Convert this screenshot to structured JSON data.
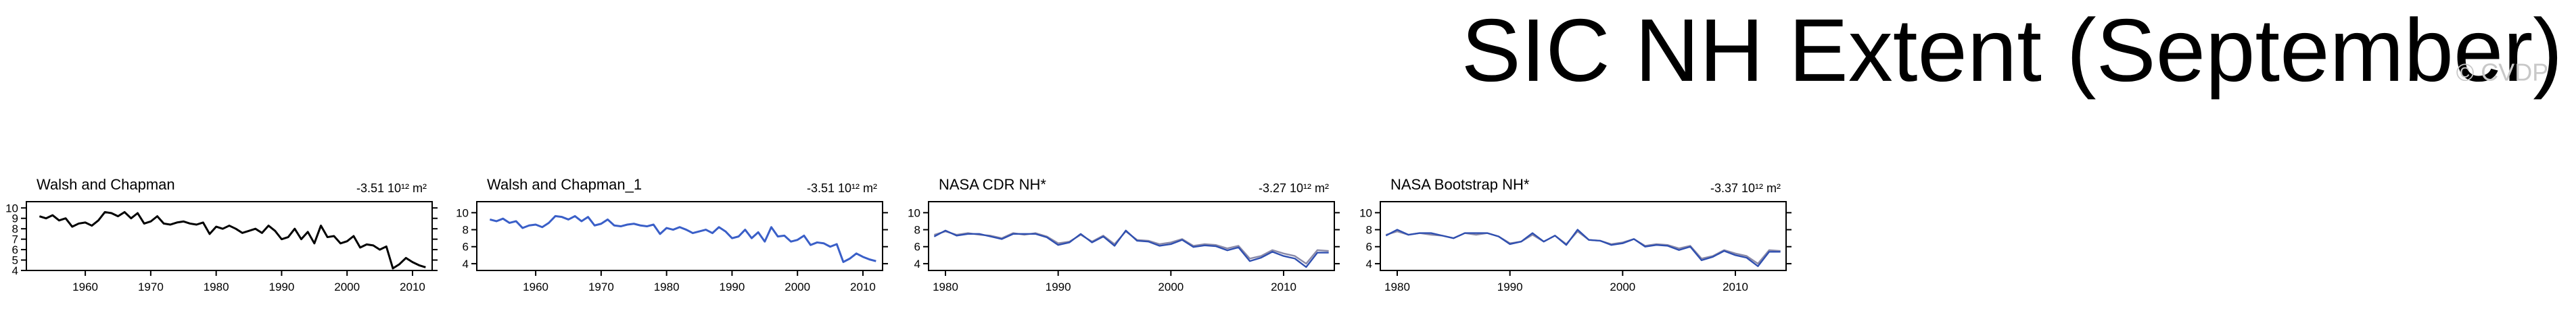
{
  "title": "SIC NH Extent (September)",
  "watermark": "© CVDP",
  "chart_data": [
    {
      "type": "line",
      "title": "Walsh and Chapman",
      "annotation": "-3.51 10¹² m²",
      "x": [
        1953,
        1954,
        1955,
        1956,
        1957,
        1958,
        1959,
        1960,
        1961,
        1962,
        1963,
        1964,
        1965,
        1966,
        1967,
        1968,
        1969,
        1970,
        1971,
        1972,
        1973,
        1974,
        1975,
        1976,
        1977,
        1978,
        1979,
        1980,
        1981,
        1982,
        1983,
        1984,
        1985,
        1986,
        1987,
        1988,
        1989,
        1990,
        1991,
        1992,
        1993,
        1994,
        1995,
        1996,
        1997,
        1998,
        1999,
        2000,
        2001,
        2002,
        2003,
        2004,
        2005,
        2006,
        2007,
        2008,
        2009,
        2010,
        2011,
        2012
      ],
      "series": [
        {
          "color": "#000000",
          "values": [
            9.2,
            9.0,
            9.3,
            8.8,
            9.0,
            8.2,
            8.5,
            8.6,
            8.3,
            8.8,
            9.6,
            9.5,
            9.2,
            9.6,
            9.0,
            9.5,
            8.5,
            8.7,
            9.2,
            8.5,
            8.4,
            8.6,
            8.7,
            8.5,
            8.4,
            8.6,
            7.5,
            8.2,
            8.0,
            8.3,
            8.0,
            7.6,
            7.8,
            8.0,
            7.6,
            8.3,
            7.8,
            7.0,
            7.2,
            8.0,
            7.0,
            7.7,
            6.6,
            8.3,
            7.2,
            7.3,
            6.6,
            6.8,
            7.3,
            6.2,
            6.5,
            6.4,
            6.0,
            6.3,
            4.2,
            4.6,
            5.2,
            4.8,
            4.5,
            4.3
          ]
        }
      ],
      "xlim": [
        1951,
        2013
      ],
      "xticks": [
        1960,
        1970,
        1980,
        1990,
        2000,
        2010
      ],
      "ylim": [
        4,
        10.6
      ],
      "yticks": [
        4,
        5,
        6,
        7,
        8,
        9,
        10
      ]
    },
    {
      "type": "line",
      "title": "Walsh and Chapman_1",
      "annotation": "-3.51 10¹² m²",
      "x": [
        1953,
        1954,
        1955,
        1956,
        1957,
        1958,
        1959,
        1960,
        1961,
        1962,
        1963,
        1964,
        1965,
        1966,
        1967,
        1968,
        1969,
        1970,
        1971,
        1972,
        1973,
        1974,
        1975,
        1976,
        1977,
        1978,
        1979,
        1980,
        1981,
        1982,
        1983,
        1984,
        1985,
        1986,
        1987,
        1988,
        1989,
        1990,
        1991,
        1992,
        1993,
        1994,
        1995,
        1996,
        1997,
        1998,
        1999,
        2000,
        2001,
        2002,
        2003,
        2004,
        2005,
        2006,
        2007,
        2008,
        2009,
        2010,
        2011,
        2012
      ],
      "series": [
        {
          "color": "#3a5fc8",
          "values": [
            9.2,
            9.0,
            9.3,
            8.8,
            9.0,
            8.2,
            8.5,
            8.6,
            8.3,
            8.8,
            9.6,
            9.5,
            9.2,
            9.6,
            9.0,
            9.5,
            8.5,
            8.7,
            9.2,
            8.5,
            8.4,
            8.6,
            8.7,
            8.5,
            8.4,
            8.6,
            7.5,
            8.2,
            8.0,
            8.3,
            8.0,
            7.6,
            7.8,
            8.0,
            7.6,
            8.3,
            7.8,
            7.0,
            7.2,
            8.0,
            7.0,
            7.7,
            6.6,
            8.3,
            7.2,
            7.3,
            6.6,
            6.8,
            7.3,
            6.2,
            6.5,
            6.4,
            6.0,
            6.3,
            4.2,
            4.6,
            5.2,
            4.8,
            4.5,
            4.3
          ]
        }
      ],
      "xlim": [
        1951,
        2013
      ],
      "xticks": [
        1960,
        1970,
        1980,
        1990,
        2000,
        2010
      ],
      "ylim": [
        3.2,
        11.3
      ],
      "yticks": [
        4,
        6,
        8,
        10
      ]
    },
    {
      "type": "line",
      "title": "NASA CDR NH*",
      "annotation": "-3.27 10¹² m²",
      "x": [
        1979,
        1980,
        1981,
        1982,
        1983,
        1984,
        1985,
        1986,
        1987,
        1988,
        1989,
        1990,
        1991,
        1992,
        1993,
        1994,
        1995,
        1996,
        1997,
        1998,
        1999,
        2000,
        2001,
        2002,
        2003,
        2004,
        2005,
        2006,
        2007,
        2008,
        2009,
        2010,
        2011,
        2012,
        2013,
        2014
      ],
      "series": [
        {
          "color": "#8a8aa8",
          "values": [
            7.4,
            7.8,
            7.4,
            7.6,
            7.4,
            7.3,
            7.0,
            7.6,
            7.4,
            7.6,
            7.2,
            6.4,
            6.6,
            7.4,
            6.6,
            7.3,
            6.3,
            7.8,
            6.8,
            6.7,
            6.3,
            6.5,
            6.9,
            6.1,
            6.3,
            6.2,
            5.8,
            6.1,
            4.6,
            4.9,
            5.6,
            5.2,
            4.9,
            4.0,
            5.6,
            5.5
          ]
        },
        {
          "color": "#2f4fb0",
          "values": [
            7.2,
            7.9,
            7.3,
            7.5,
            7.5,
            7.2,
            6.9,
            7.5,
            7.5,
            7.5,
            7.1,
            6.2,
            6.5,
            7.5,
            6.5,
            7.2,
            6.1,
            7.9,
            6.7,
            6.6,
            6.1,
            6.3,
            6.8,
            5.96,
            6.15,
            6.05,
            5.57,
            5.92,
            4.3,
            4.7,
            5.4,
            4.9,
            4.6,
            3.6,
            5.3,
            5.3
          ]
        }
      ],
      "xlim": [
        1978.5,
        2014.5
      ],
      "xticks": [
        1980,
        1990,
        2000,
        2010
      ],
      "ylim": [
        3.2,
        11.3
      ],
      "yticks": [
        4,
        6,
        8,
        10
      ]
    },
    {
      "type": "line",
      "title": "NASA Bootstrap NH*",
      "annotation": "-3.37 10¹² m²",
      "x": [
        1979,
        1980,
        1981,
        1982,
        1983,
        1984,
        1985,
        1986,
        1987,
        1988,
        1989,
        1990,
        1991,
        1992,
        1993,
        1994,
        1995,
        1996,
        1997,
        1998,
        1999,
        2000,
        2001,
        2002,
        2003,
        2004,
        2005,
        2006,
        2007,
        2008,
        2009,
        2010,
        2011,
        2012,
        2013,
        2014
      ],
      "series": [
        {
          "color": "#8a8aa8",
          "values": [
            7.4,
            7.8,
            7.4,
            7.6,
            7.4,
            7.3,
            7.0,
            7.6,
            7.4,
            7.6,
            7.2,
            6.4,
            6.6,
            7.4,
            6.6,
            7.3,
            6.3,
            7.8,
            6.8,
            6.7,
            6.3,
            6.5,
            6.9,
            6.1,
            6.3,
            6.2,
            5.8,
            6.1,
            4.6,
            4.9,
            5.6,
            5.2,
            4.9,
            4.0,
            5.6,
            5.5
          ]
        },
        {
          "color": "#2f4fb0",
          "values": [
            7.3,
            8.0,
            7.4,
            7.6,
            7.6,
            7.3,
            7.0,
            7.6,
            7.6,
            7.6,
            7.2,
            6.3,
            6.6,
            7.6,
            6.6,
            7.3,
            6.2,
            8.0,
            6.8,
            6.7,
            6.2,
            6.4,
            6.9,
            6.0,
            6.2,
            6.1,
            5.6,
            6.0,
            4.4,
            4.8,
            5.5,
            5.0,
            4.7,
            3.7,
            5.4,
            5.4
          ]
        }
      ],
      "xlim": [
        1978.5,
        2014.5
      ],
      "xticks": [
        1980,
        1990,
        2000,
        2010
      ],
      "ylim": [
        3.2,
        11.3
      ],
      "yticks": [
        4,
        6,
        8,
        10
      ]
    }
  ]
}
